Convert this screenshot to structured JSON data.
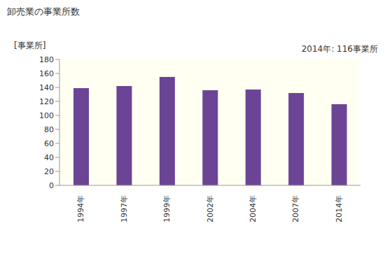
{
  "chart_data": {
    "type": "bar",
    "title": "卸売業の事業所数",
    "y_label": "[事業所]",
    "annotation": "2014年: 116事業所",
    "categories": [
      "1994年",
      "1997年",
      "1999年",
      "2002年",
      "2004年",
      "2007年",
      "2014年"
    ],
    "values": [
      139,
      142,
      155,
      136,
      137,
      132,
      116
    ],
    "color": "#6b4496",
    "ylim": [
      0,
      180
    ],
    "yticks": [
      0,
      20,
      40,
      60,
      80,
      100,
      120,
      140,
      160,
      180
    ],
    "grid": false
  }
}
